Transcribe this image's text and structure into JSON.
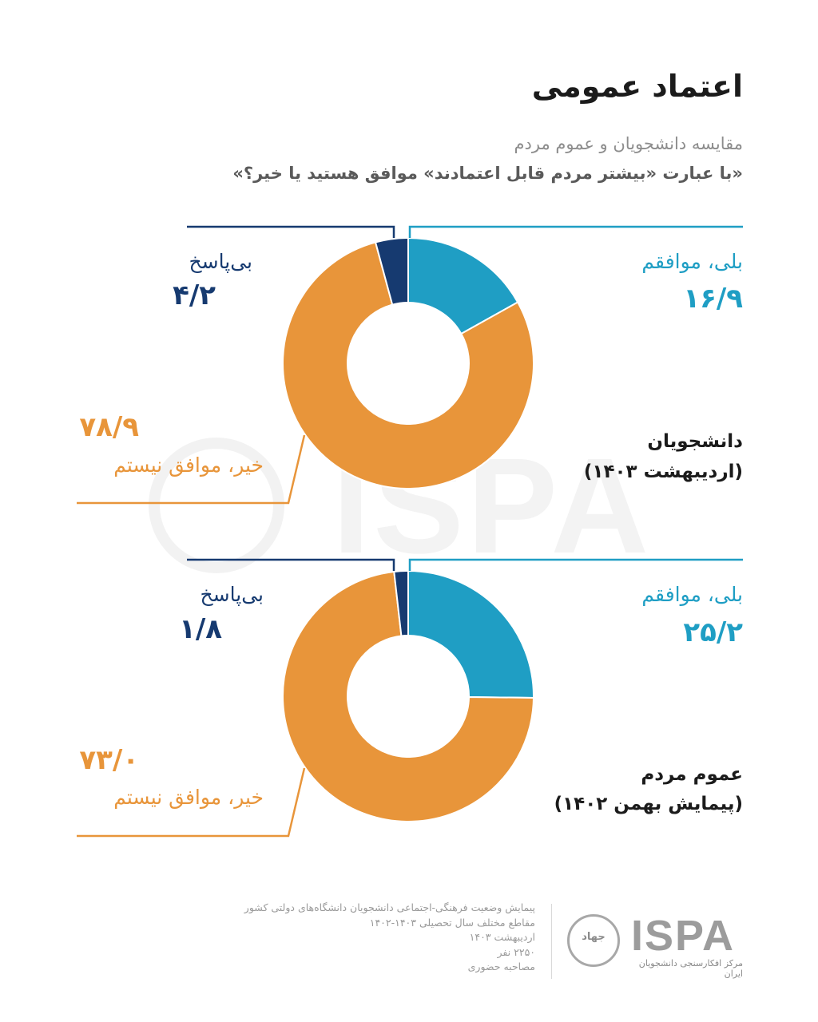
{
  "header": {
    "title": "اعتماد عمومی",
    "subtitle": "مقایسه دانشجویان و عموم مردم",
    "question": "«با عبارت «بیشتر مردم قابل اعتمادند» موافق هستید یا خیر؟»"
  },
  "colors": {
    "yes": "#1f9ec4",
    "no": "#e8953a",
    "no_answer": "#163a70"
  },
  "groups": [
    {
      "title": "دانشجویان",
      "subtitle": "(اردیبهشت ۱۴۰۳)",
      "yes": {
        "label": "بلی، موافقم",
        "value_text": "۱۶/۹"
      },
      "no": {
        "label": "خیر، موافق نیستم",
        "value_text": "۷۸/۹"
      },
      "no_answer": {
        "label": "بی‌پاسخ",
        "value_text": "۴/۲"
      }
    },
    {
      "title": "عموم مردم",
      "subtitle": "(پیمایش بهمن ۱۴۰۲)",
      "yes": {
        "label": "بلی، موافقم",
        "value_text": "۲۵/۲"
      },
      "no": {
        "label": "خیر، موافق نیستم",
        "value_text": "۷۳/۰"
      },
      "no_answer": {
        "label": "بی‌پاسخ",
        "value_text": "۱/۸"
      }
    }
  ],
  "chart_data": [
    {
      "type": "pie",
      "variant": "donut",
      "title": "دانشجویان (اردیبهشت ۱۴۰۳)",
      "categories": [
        "بلی، موافقم",
        "خیر، موافق نیستم",
        "بی‌پاسخ"
      ],
      "values": [
        16.9,
        78.9,
        4.2
      ],
      "colors": [
        "#1f9ec4",
        "#e8953a",
        "#163a70"
      ]
    },
    {
      "type": "pie",
      "variant": "donut",
      "title": "عموم مردم (پیمایش بهمن ۱۴۰۲)",
      "categories": [
        "بلی، موافقم",
        "خیر، موافق نیستم",
        "بی‌پاسخ"
      ],
      "values": [
        25.2,
        73.0,
        1.8
      ],
      "colors": [
        "#1f9ec4",
        "#e8953a",
        "#163a70"
      ]
    }
  ],
  "watermark": {
    "text": "ISPA"
  },
  "footer": {
    "lines": [
      "پیمایش وضعیت فرهنگی-اجتماعی دانشجویان دانشگاه‌های دولتی کشور",
      "مقاطع مختلف سال تحصیلی ۱۴۰۳-۱۴۰۲",
      "اردیبهشت ۱۴۰۳",
      "۲۲۵۰ نفر",
      "مصاحبه حضوری"
    ],
    "logo_text": "ISPA",
    "logo_seal_text": "جهاد",
    "logo_subtext": "مرکز افکارسنجی دانشجویان ایران"
  }
}
